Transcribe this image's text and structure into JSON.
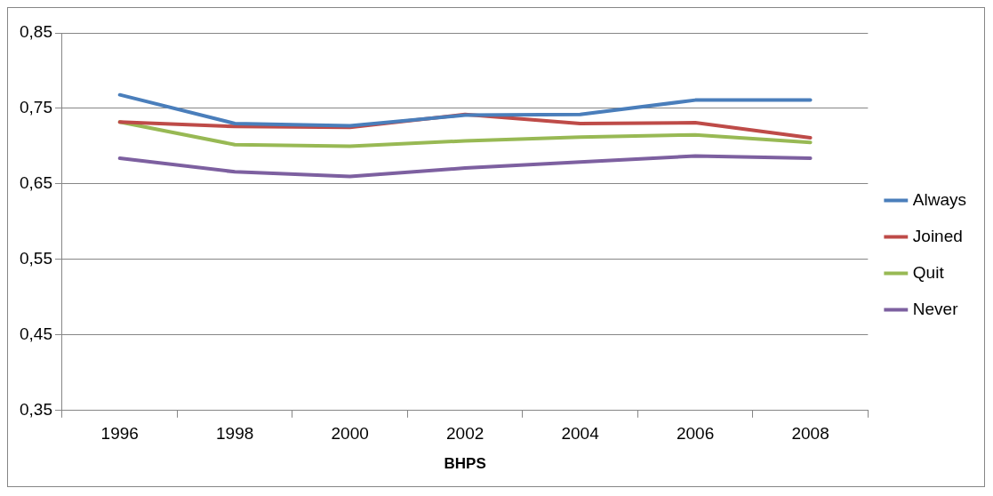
{
  "chart_data": {
    "type": "line",
    "xlabel": "BHPS",
    "categories": [
      "1996",
      "1998",
      "2000",
      "2002",
      "2004",
      "2006",
      "2008"
    ],
    "series": [
      {
        "name": "Always",
        "color": "#4a7ebb",
        "values": [
          0.768,
          0.73,
          0.727,
          0.741,
          0.742,
          0.761,
          0.761
        ]
      },
      {
        "name": "Joined",
        "color": "#be4b48",
        "values": [
          0.732,
          0.726,
          0.725,
          0.742,
          0.73,
          0.731,
          0.711
        ]
      },
      {
        "name": "Quit",
        "color": "#98b954",
        "values": [
          0.732,
          0.702,
          0.7,
          0.707,
          0.712,
          0.715,
          0.705
        ]
      },
      {
        "name": "Never",
        "color": "#7d60a0",
        "values": [
          0.684,
          0.666,
          0.66,
          0.671,
          0.679,
          0.687,
          0.684
        ]
      }
    ],
    "ylim": [
      0.35,
      0.85
    ],
    "yticks": [
      {
        "value": 0.35,
        "label": "0,35"
      },
      {
        "value": 0.45,
        "label": "0,45"
      },
      {
        "value": 0.55,
        "label": "0,55"
      },
      {
        "value": 0.65,
        "label": "0,65"
      },
      {
        "value": 0.75,
        "label": "0,75"
      },
      {
        "value": 0.85,
        "label": "0,85"
      }
    ],
    "grid": "y",
    "legend": "right",
    "marker": "none",
    "line_style": "solid"
  }
}
